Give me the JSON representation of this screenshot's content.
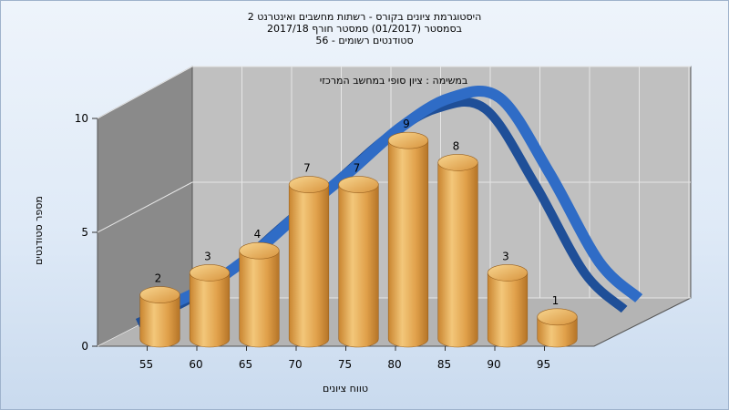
{
  "title_lines": [
    "היסטוגרמת ציונים בקורס - רשתות מחשבים ואינטרנט 2",
    "בסמסטר  (01/2017)  סמסטר חורף  2017/18",
    "סטודנטים רשומים - 56"
  ],
  "chart_data": {
    "type": "bar",
    "categories": [
      "55",
      "60",
      "65",
      "70",
      "75",
      "80",
      "85",
      "90",
      "95"
    ],
    "values": [
      2,
      3,
      4,
      7,
      7,
      9,
      8,
      3,
      1
    ],
    "data_labels": [
      "2",
      "3",
      "4",
      "7",
      "7",
      "9",
      "8",
      "3",
      "1"
    ],
    "curve_values": [
      1.2,
      2.7,
      4.6,
      6.4,
      8.3,
      9.6,
      9.6,
      6.3,
      2.4
    ],
    "ylim": [
      0,
      10
    ],
    "yticks": [
      0,
      5,
      10
    ],
    "ytick_labels": [
      "0",
      "5",
      "10"
    ],
    "xlabel": "טווח ציונים",
    "ylabel": "מספר סטודנטים",
    "annotation": "במשימה : ציון סופי במחשב המרכזי",
    "grid": true,
    "colors": {
      "bar_light": "#f6cf86",
      "bar_mid": "#e3a24a",
      "bar_dark": "#b57427",
      "curve": "#2f6cc6",
      "curve_dark": "#1f4f98",
      "back_wall": "#c0c0c0",
      "side_wall": "#8a8a8a",
      "floor": "#b4b4b4"
    }
  }
}
